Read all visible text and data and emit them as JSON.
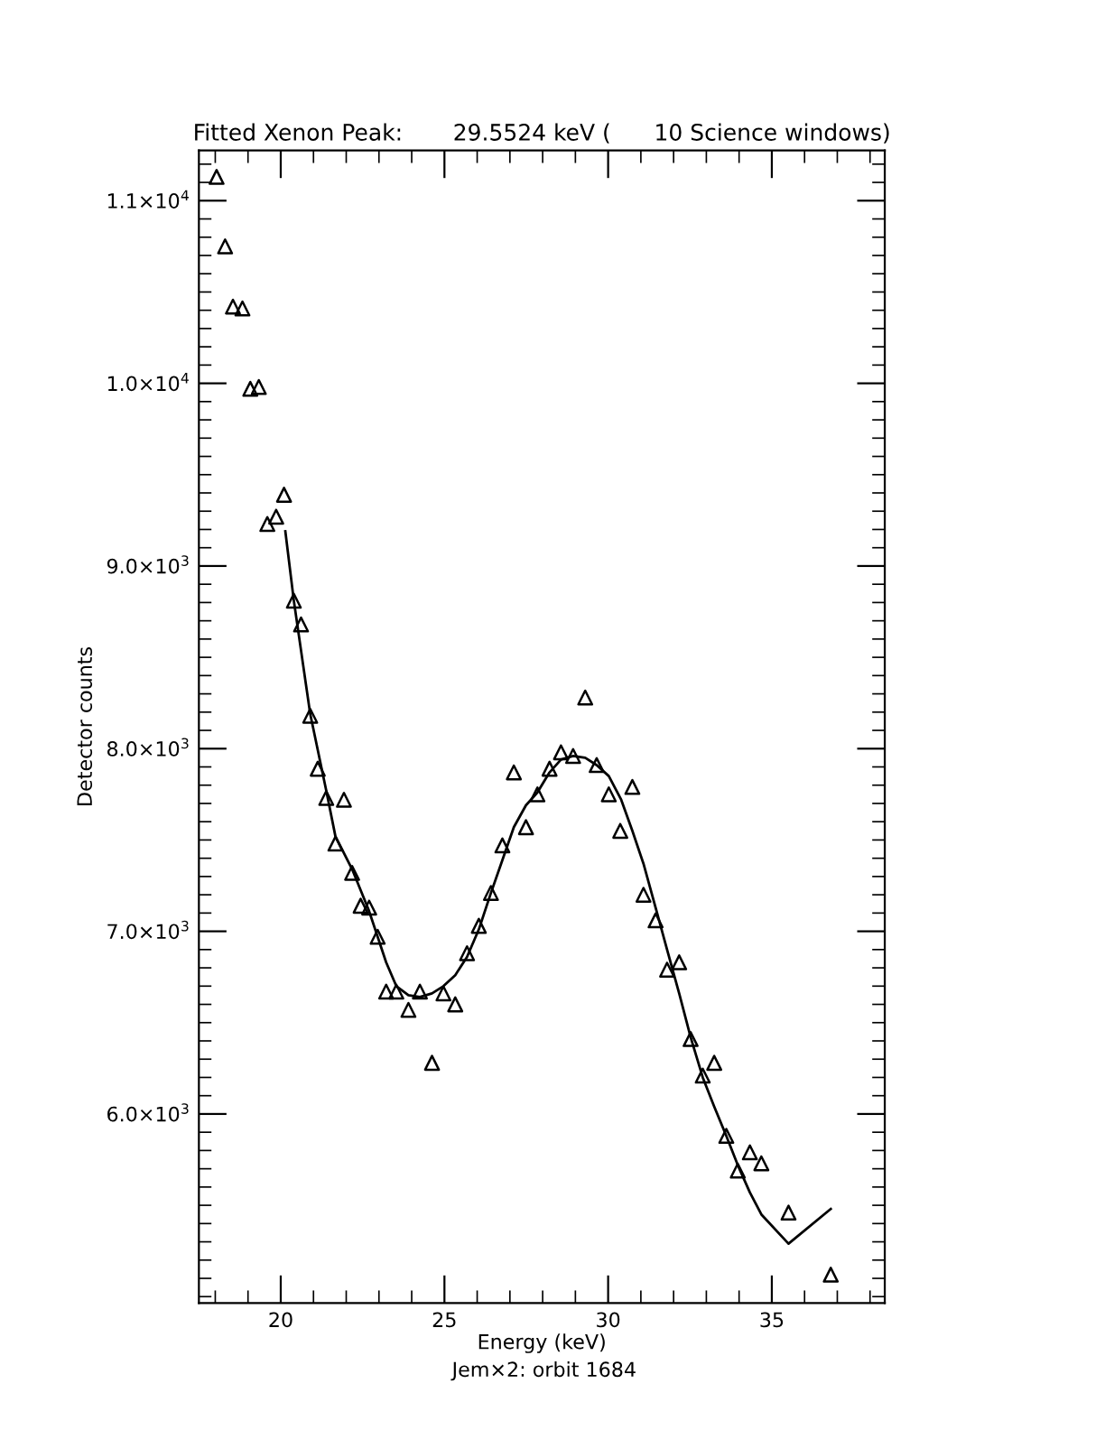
{
  "chart_data": {
    "type": "scatter",
    "title": "Fitted Xenon Peak:       29.5524 keV (      10 Science windows)",
    "xlabel": "Energy (keV)",
    "ylabel": "Detector counts",
    "annotations": [
      "Jem×2: orbit 1684"
    ],
    "xlim": [
      17.5,
      38.45
    ],
    "xticks": [
      20,
      25,
      30,
      35
    ],
    "ylim": [
      4965,
      11275
    ],
    "yticks": [
      {
        "value": 6000,
        "label": "6.0×10$^{3}$"
      },
      {
        "value": 7000,
        "label": "7.0×10$^{3}$"
      },
      {
        "value": 8000,
        "label": "8.0×10$^{3}$"
      },
      {
        "value": 9000,
        "label": "9.0×10$^{3}$"
      },
      {
        "value": 10000,
        "label": "1.0×10$^{4}$"
      },
      {
        "value": 11000,
        "label": "1.1×10$^{4}$"
      }
    ],
    "grid": false,
    "legend": false,
    "series": [
      {
        "color": "#000000",
        "marker": "triangle",
        "x": [
          18.04,
          18.3,
          18.54,
          18.83,
          19.07,
          19.33,
          19.59,
          19.86,
          20.1,
          20.4,
          20.62,
          20.9,
          21.13,
          21.39,
          21.67,
          21.93,
          22.18,
          22.44,
          22.7,
          22.96,
          23.22,
          23.53,
          23.9,
          24.25,
          24.62,
          24.97,
          25.33,
          25.69,
          26.05,
          26.42,
          26.77,
          27.12,
          27.49,
          27.84,
          28.21,
          28.56,
          28.93,
          29.3,
          29.65,
          30.02,
          30.37,
          30.74,
          31.08,
          31.45,
          31.8,
          32.17,
          32.52,
          32.89,
          33.24,
          33.61,
          33.96,
          34.33,
          34.68,
          35.51,
          36.8
        ],
        "values": [
          11130,
          10750,
          10420,
          10410,
          9970,
          9980,
          9230,
          9270,
          9390,
          8810,
          8680,
          8180,
          7890,
          7730,
          7480,
          7720,
          7320,
          7140,
          7130,
          6970,
          6670,
          6670,
          6570,
          6670,
          6280,
          6660,
          6600,
          6880,
          7030,
          7210,
          7470,
          7870,
          7570,
          7750,
          7890,
          7980,
          7960,
          8280,
          7910,
          7750,
          7550,
          7790,
          7200,
          7060,
          6790,
          6830,
          6410,
          6210,
          6280,
          5880,
          5690,
          5790,
          5730,
          5460,
          5120
        ]
      },
      {
        "type": "line",
        "color": "#000000",
        "marker": "none",
        "line_style": "solid",
        "x": [
          20.14,
          20.4,
          20.9,
          21.39,
          21.67,
          22.18,
          22.7,
          23.22,
          23.53,
          23.9,
          24.25,
          24.62,
          24.97,
          25.33,
          25.69,
          26.05,
          26.42,
          26.77,
          27.12,
          27.49,
          27.84,
          28.21,
          28.56,
          28.93,
          29.3,
          29.65,
          30.02,
          30.4,
          30.74,
          31.08,
          31.45,
          31.8,
          32.17,
          32.52,
          32.89,
          33.24,
          33.61,
          33.96,
          34.33,
          34.68,
          35.51,
          36.8
        ],
        "values": [
          9190,
          8810,
          8190,
          7770,
          7520,
          7340,
          7110,
          6830,
          6700,
          6650,
          6640,
          6660,
          6700,
          6760,
          6860,
          7010,
          7210,
          7390,
          7570,
          7690,
          7760,
          7870,
          7940,
          7960,
          7950,
          7910,
          7850,
          7720,
          7550,
          7370,
          7130,
          6900,
          6660,
          6420,
          6200,
          6040,
          5880,
          5720,
          5570,
          5450,
          5290,
          5480
        ]
      }
    ]
  }
}
